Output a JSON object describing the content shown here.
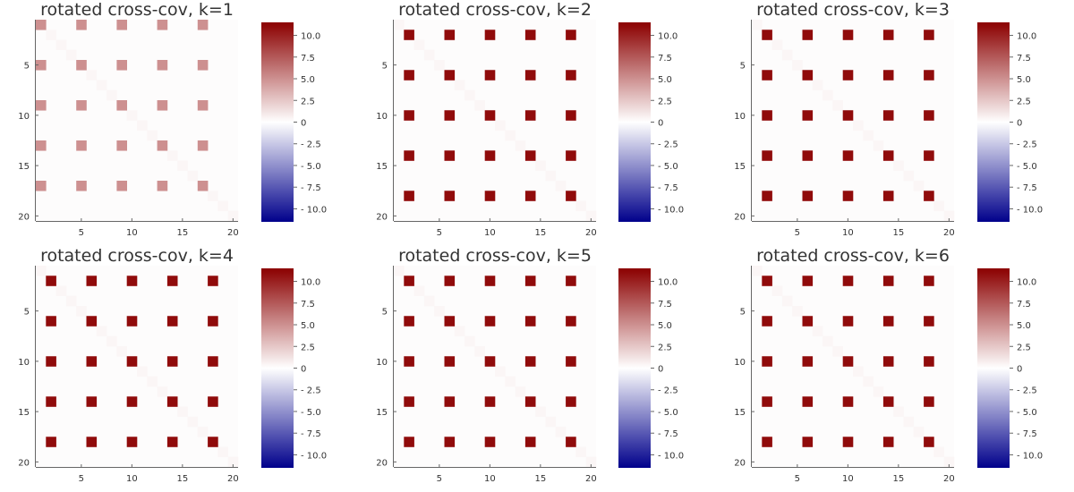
{
  "chart_data": [
    {
      "type": "heatmap",
      "title": "rotated cross-cov, k=1",
      "grid_size": 20,
      "bright_cells": [
        [
          1,
          1
        ],
        [
          5,
          1
        ],
        [
          9,
          1
        ],
        [
          13,
          1
        ],
        [
          17,
          1
        ],
        [
          1,
          5
        ],
        [
          5,
          5
        ],
        [
          9,
          5
        ],
        [
          13,
          5
        ],
        [
          17,
          5
        ],
        [
          1,
          9
        ],
        [
          5,
          9
        ],
        [
          9,
          9
        ],
        [
          13,
          9
        ],
        [
          17,
          9
        ],
        [
          1,
          13
        ],
        [
          5,
          13
        ],
        [
          9,
          13
        ],
        [
          13,
          13
        ],
        [
          17,
          13
        ],
        [
          1,
          17
        ],
        [
          5,
          17
        ],
        [
          9,
          17
        ],
        [
          13,
          17
        ],
        [
          17,
          17
        ]
      ],
      "bright_value": 5.0,
      "diagonal_value": 0.4,
      "background_value": 0.15,
      "colorbar_ticks": [
        "10.0",
        "7.5",
        "5.0",
        "2.5",
        "0",
        "- 2.5",
        "- 5.0",
        "- 7.5",
        "- 10.0"
      ],
      "colorbar_values": [
        10,
        7.5,
        5,
        2.5,
        0,
        -2.5,
        -5,
        -7.5,
        -10
      ],
      "xticks": [
        "5",
        "10",
        "15",
        "20"
      ],
      "yticks": [
        "5",
        "10",
        "15",
        "20"
      ],
      "xlim": [
        0.5,
        20.5
      ],
      "ylim": [
        0.5,
        20.5
      ],
      "clim": [
        -11.5,
        11.5
      ],
      "colormap": [
        "#00008b",
        "#ffffff",
        "#8b0000"
      ]
    },
    {
      "type": "heatmap",
      "title": "rotated cross-cov, k=2",
      "grid_size": 20,
      "bright_cells": [
        [
          2,
          2
        ],
        [
          6,
          2
        ],
        [
          10,
          2
        ],
        [
          14,
          2
        ],
        [
          18,
          2
        ],
        [
          2,
          6
        ],
        [
          6,
          6
        ],
        [
          10,
          6
        ],
        [
          14,
          6
        ],
        [
          18,
          6
        ],
        [
          2,
          10
        ],
        [
          6,
          10
        ],
        [
          10,
          10
        ],
        [
          14,
          10
        ],
        [
          18,
          10
        ],
        [
          2,
          14
        ],
        [
          6,
          14
        ],
        [
          10,
          14
        ],
        [
          14,
          14
        ],
        [
          18,
          14
        ],
        [
          2,
          18
        ],
        [
          6,
          18
        ],
        [
          10,
          18
        ],
        [
          14,
          18
        ],
        [
          18,
          18
        ]
      ],
      "bright_value": 11.0,
      "diagonal_value": 0.4,
      "background_value": 0.15,
      "colorbar_ticks": [
        "10.0",
        "7.5",
        "5.0",
        "2.5",
        "0",
        "- 2.5",
        "- 5.0",
        "- 7.5",
        "- 10.0"
      ],
      "colorbar_values": [
        10,
        7.5,
        5,
        2.5,
        0,
        -2.5,
        -5,
        -7.5,
        -10
      ],
      "xticks": [
        "5",
        "10",
        "15",
        "20"
      ],
      "yticks": [
        "5",
        "10",
        "15",
        "20"
      ],
      "xlim": [
        0.5,
        20.5
      ],
      "ylim": [
        0.5,
        20.5
      ],
      "clim": [
        -11.5,
        11.5
      ],
      "colormap": [
        "#00008b",
        "#ffffff",
        "#8b0000"
      ]
    },
    {
      "type": "heatmap",
      "title": "rotated cross-cov, k=3",
      "grid_size": 20,
      "bright_cells": [
        [
          2,
          2
        ],
        [
          6,
          2
        ],
        [
          10,
          2
        ],
        [
          14,
          2
        ],
        [
          18,
          2
        ],
        [
          2,
          6
        ],
        [
          6,
          6
        ],
        [
          10,
          6
        ],
        [
          14,
          6
        ],
        [
          18,
          6
        ],
        [
          2,
          10
        ],
        [
          6,
          10
        ],
        [
          10,
          10
        ],
        [
          14,
          10
        ],
        [
          18,
          10
        ],
        [
          2,
          14
        ],
        [
          6,
          14
        ],
        [
          10,
          14
        ],
        [
          14,
          14
        ],
        [
          18,
          14
        ],
        [
          2,
          18
        ],
        [
          6,
          18
        ],
        [
          10,
          18
        ],
        [
          14,
          18
        ],
        [
          18,
          18
        ]
      ],
      "bright_value": 11.0,
      "diagonal_value": 0.4,
      "background_value": 0.15,
      "colorbar_ticks": [
        "10.0",
        "7.5",
        "5.0",
        "2.5",
        "0",
        "- 2.5",
        "- 5.0",
        "- 7.5",
        "- 10.0"
      ],
      "colorbar_values": [
        10,
        7.5,
        5,
        2.5,
        0,
        -2.5,
        -5,
        -7.5,
        -10
      ],
      "xticks": [
        "5",
        "10",
        "15",
        "20"
      ],
      "yticks": [
        "5",
        "10",
        "15",
        "20"
      ],
      "xlim": [
        0.5,
        20.5
      ],
      "ylim": [
        0.5,
        20.5
      ],
      "clim": [
        -11.5,
        11.5
      ],
      "colormap": [
        "#00008b",
        "#ffffff",
        "#8b0000"
      ]
    },
    {
      "type": "heatmap",
      "title": "rotated cross-cov, k=4",
      "grid_size": 20,
      "bright_cells": [
        [
          2,
          2
        ],
        [
          6,
          2
        ],
        [
          10,
          2
        ],
        [
          14,
          2
        ],
        [
          18,
          2
        ],
        [
          2,
          6
        ],
        [
          6,
          6
        ],
        [
          10,
          6
        ],
        [
          14,
          6
        ],
        [
          18,
          6
        ],
        [
          2,
          10
        ],
        [
          6,
          10
        ],
        [
          10,
          10
        ],
        [
          14,
          10
        ],
        [
          18,
          10
        ],
        [
          2,
          14
        ],
        [
          6,
          14
        ],
        [
          10,
          14
        ],
        [
          14,
          14
        ],
        [
          18,
          14
        ],
        [
          2,
          18
        ],
        [
          6,
          18
        ],
        [
          10,
          18
        ],
        [
          14,
          18
        ],
        [
          18,
          18
        ]
      ],
      "bright_value": 11.0,
      "diagonal_value": 0.4,
      "background_value": 0.15,
      "colorbar_ticks": [
        "10.0",
        "7.5",
        "5.0",
        "2.5",
        "0",
        "- 2.5",
        "- 5.0",
        "- 7.5",
        "- 10.0"
      ],
      "colorbar_values": [
        10,
        7.5,
        5,
        2.5,
        0,
        -2.5,
        -5,
        -7.5,
        -10
      ],
      "xticks": [
        "5",
        "10",
        "15",
        "20"
      ],
      "yticks": [
        "5",
        "10",
        "15",
        "20"
      ],
      "xlim": [
        0.5,
        20.5
      ],
      "ylim": [
        0.5,
        20.5
      ],
      "clim": [
        -11.5,
        11.5
      ],
      "colormap": [
        "#00008b",
        "#ffffff",
        "#8b0000"
      ]
    },
    {
      "type": "heatmap",
      "title": "rotated cross-cov, k=5",
      "grid_size": 20,
      "bright_cells": [
        [
          2,
          2
        ],
        [
          6,
          2
        ],
        [
          10,
          2
        ],
        [
          14,
          2
        ],
        [
          18,
          2
        ],
        [
          2,
          6
        ],
        [
          6,
          6
        ],
        [
          10,
          6
        ],
        [
          14,
          6
        ],
        [
          18,
          6
        ],
        [
          2,
          10
        ],
        [
          6,
          10
        ],
        [
          10,
          10
        ],
        [
          14,
          10
        ],
        [
          18,
          10
        ],
        [
          2,
          14
        ],
        [
          6,
          14
        ],
        [
          10,
          14
        ],
        [
          14,
          14
        ],
        [
          18,
          14
        ],
        [
          2,
          18
        ],
        [
          6,
          18
        ],
        [
          10,
          18
        ],
        [
          14,
          18
        ],
        [
          18,
          18
        ]
      ],
      "bright_value": 11.0,
      "diagonal_value": 0.4,
      "background_value": 0.15,
      "colorbar_ticks": [
        "10.0",
        "7.5",
        "5.0",
        "2.5",
        "0",
        "- 2.5",
        "- 5.0",
        "- 7.5",
        "- 10.0"
      ],
      "colorbar_values": [
        10,
        7.5,
        5,
        2.5,
        0,
        -2.5,
        -5,
        -7.5,
        -10
      ],
      "xticks": [
        "5",
        "10",
        "15",
        "20"
      ],
      "yticks": [
        "5",
        "10",
        "15",
        "20"
      ],
      "xlim": [
        0.5,
        20.5
      ],
      "ylim": [
        0.5,
        20.5
      ],
      "clim": [
        -11.5,
        11.5
      ],
      "colormap": [
        "#00008b",
        "#ffffff",
        "#8b0000"
      ]
    },
    {
      "type": "heatmap",
      "title": "rotated cross-cov, k=6",
      "grid_size": 20,
      "bright_cells": [
        [
          2,
          2
        ],
        [
          6,
          2
        ],
        [
          10,
          2
        ],
        [
          14,
          2
        ],
        [
          18,
          2
        ],
        [
          2,
          6
        ],
        [
          6,
          6
        ],
        [
          10,
          6
        ],
        [
          14,
          6
        ],
        [
          18,
          6
        ],
        [
          2,
          10
        ],
        [
          6,
          10
        ],
        [
          10,
          10
        ],
        [
          14,
          10
        ],
        [
          18,
          10
        ],
        [
          2,
          14
        ],
        [
          6,
          14
        ],
        [
          10,
          14
        ],
        [
          14,
          14
        ],
        [
          18,
          14
        ],
        [
          2,
          18
        ],
        [
          6,
          18
        ],
        [
          10,
          18
        ],
        [
          14,
          18
        ],
        [
          18,
          18
        ]
      ],
      "bright_value": 11.0,
      "diagonal_value": 0.4,
      "background_value": 0.15,
      "colorbar_ticks": [
        "10.0",
        "7.5",
        "5.0",
        "2.5",
        "0",
        "- 2.5",
        "- 5.0",
        "- 7.5",
        "- 10.0"
      ],
      "colorbar_values": [
        10,
        7.5,
        5,
        2.5,
        0,
        -2.5,
        -5,
        -7.5,
        -10
      ],
      "xticks": [
        "5",
        "10",
        "15",
        "20"
      ],
      "yticks": [
        "5",
        "10",
        "15",
        "20"
      ],
      "xlim": [
        0.5,
        20.5
      ],
      "ylim": [
        0.5,
        20.5
      ],
      "clim": [
        -11.5,
        11.5
      ],
      "colormap": [
        "#00008b",
        "#ffffff",
        "#8b0000"
      ]
    }
  ]
}
